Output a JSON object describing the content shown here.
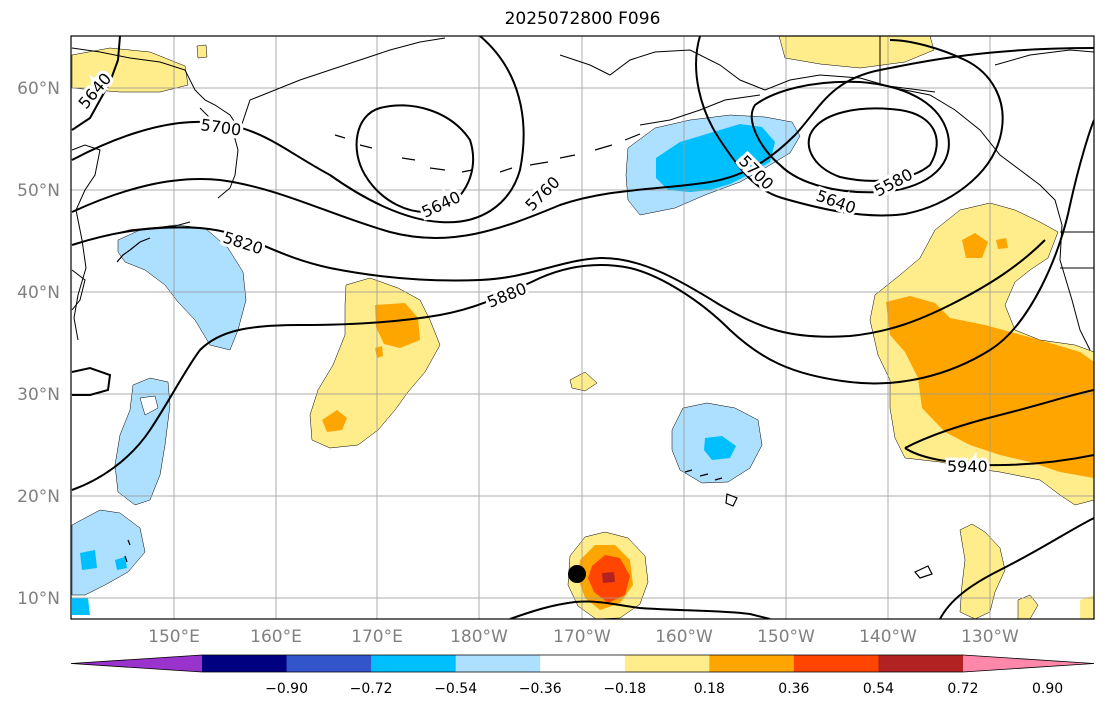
{
  "title": "2025072800 F096",
  "map": {
    "lat_labels": [
      "60°N",
      "50°N",
      "40°N",
      "30°N",
      "20°N",
      "10°N"
    ],
    "lon_labels": [
      "150°E",
      "160°E",
      "170°E",
      "180°W",
      "170°W",
      "160°W",
      "150°W",
      "140°W",
      "130°W"
    ],
    "contour_labels": [
      "5640",
      "5700",
      "5640",
      "5760",
      "5700",
      "5640",
      "5580",
      "5820",
      "5880",
      "5940"
    ]
  },
  "colorbar": {
    "ticks": [
      "−0.90",
      "−0.72",
      "−0.54",
      "−0.36",
      "−0.18",
      "0.18",
      "0.36",
      "0.54",
      "0.72",
      "0.90"
    ],
    "colors": [
      "#9933cc",
      "#000080",
      "#3355cc",
      "#00bfff",
      "#addfff",
      "#ffffff",
      "#ffec8b",
      "#ffa500",
      "#ff4500",
      "#b22222",
      "#ff88aa"
    ]
  },
  "colors": {
    "neg1": "#addfff",
    "neg2": "#00bfff",
    "pos1": "#ffec8b",
    "pos2": "#ffa500",
    "pos3": "#ff4500",
    "pos4": "#b22222",
    "grid": "#999999"
  }
}
